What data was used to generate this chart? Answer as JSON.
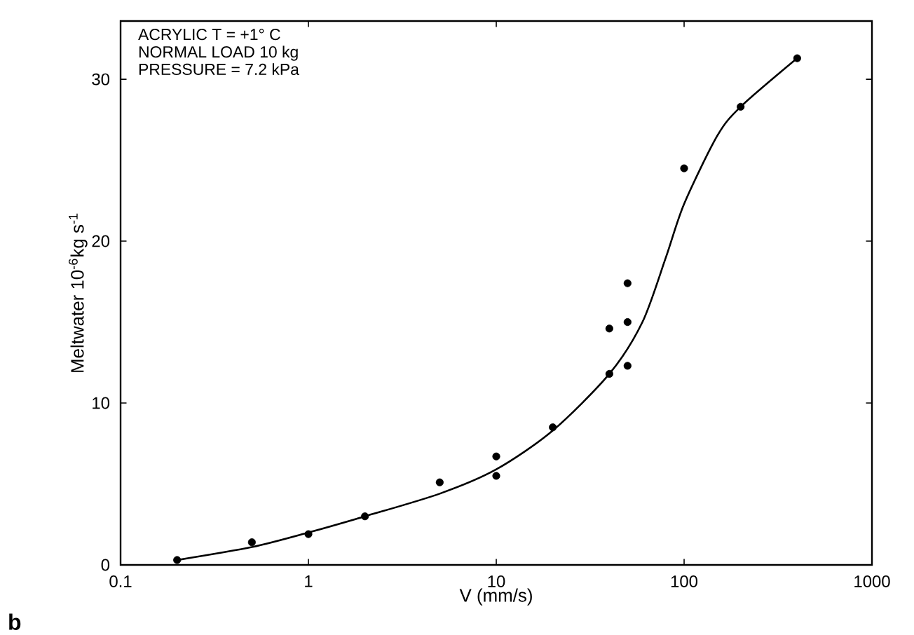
{
  "chart_data": {
    "type": "scatter",
    "xlabel": "V  (mm/s)",
    "ylabel": "Meltwater 10$^{-6}$kg s$^{-1}$",
    "log": "x",
    "xlim": [
      0.1,
      1000
    ],
    "ylim": [
      0,
      33.6
    ],
    "xticks": [
      0.1,
      1,
      10,
      100,
      1000
    ],
    "yticks": [
      0,
      10,
      20,
      30
    ],
    "marker": "circle",
    "annotations": [
      "ACRYLIC  T = +1° C",
      "NORMAL LOAD 10 kg",
      "PRESSURE = 7.2 kPa",
      "b"
    ],
    "series": [
      {
        "type": "scatter",
        "color": "#000000",
        "x": [
          0.2,
          0.5,
          1,
          2,
          5,
          10,
          10,
          20,
          40,
          40,
          50,
          50,
          50,
          100,
          200,
          400
        ],
        "values": [
          0.3,
          1.4,
          1.9,
          3.0,
          5.1,
          6.7,
          5.5,
          8.5,
          14.6,
          11.8,
          17.4,
          15.0,
          12.3,
          24.5,
          28.3,
          31.3
        ]
      },
      {
        "type": "line",
        "color": "#000000",
        "marker": "none",
        "x": [
          0.2,
          0.5,
          1,
          2,
          5,
          10,
          20,
          40,
          60,
          80,
          100,
          150,
          200,
          400
        ],
        "values": [
          0.3,
          1.1,
          2.0,
          3.0,
          4.4,
          5.9,
          8.3,
          11.8,
          15.0,
          19.0,
          22.3,
          26.5,
          28.3,
          31.3
        ]
      }
    ]
  }
}
